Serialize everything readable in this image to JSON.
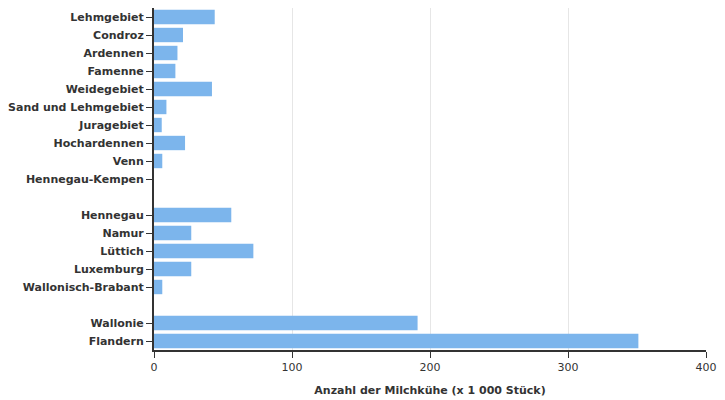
{
  "chart_data": {
    "type": "bar",
    "orientation": "horizontal",
    "categories": [
      "Lehmgebiet",
      "Condroz",
      "Ardennen",
      "Famenne",
      "Weidegebiet",
      "Sand und Lehmgebiet",
      "Juragebiet",
      "Hochardennen",
      "Venn",
      "Hennegau-Kempen",
      null,
      "Hennegau",
      "Namur",
      "Lüttich",
      "Luxemburg",
      "Wallonisch-Brabant",
      null,
      "Wallonie",
      "Flandern"
    ],
    "values": [
      44,
      21,
      17,
      15.5,
      42,
      9,
      5.6,
      22.5,
      6,
      0,
      null,
      56,
      27,
      72,
      27,
      6,
      null,
      191,
      351
    ],
    "color": "#7cb5ec",
    "x_label": "Anzahl der Milchkühe (x 1 000 Stück)",
    "xlim": [
      0,
      400
    ],
    "xticks": [
      0,
      100,
      200,
      300,
      400
    ],
    "grid": true
  }
}
